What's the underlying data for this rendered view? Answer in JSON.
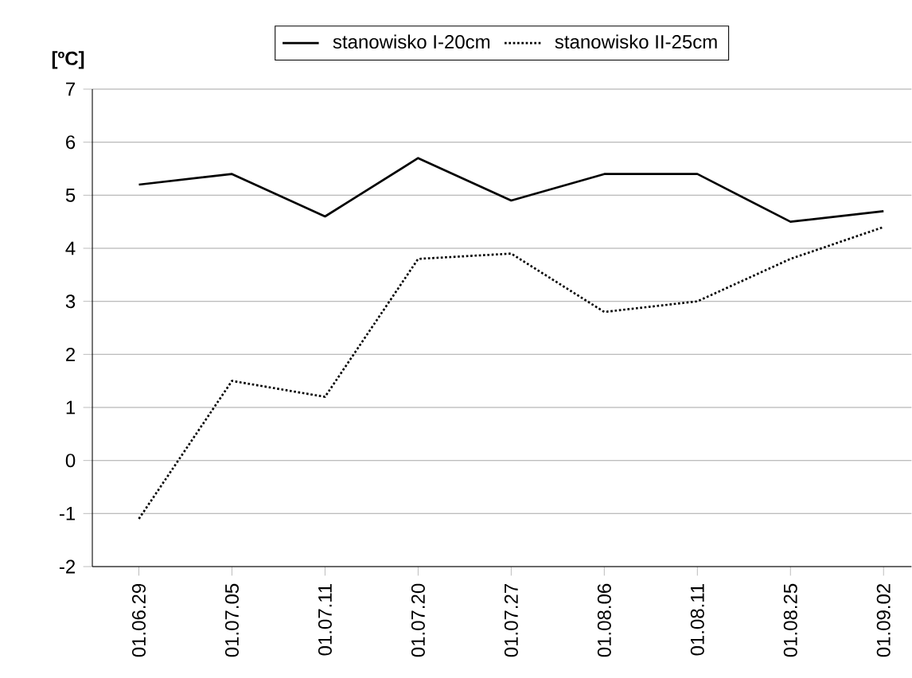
{
  "chart_data": {
    "type": "line",
    "ylabel": "[ºC]",
    "categories": [
      "01.06.29",
      "01.07.05",
      "01.07.11",
      "01.07.20",
      "01.07.27",
      "01.08.06",
      "01.08.11",
      "01.08.25",
      "01.09.02"
    ],
    "series": [
      {
        "name": "stanowisko I-20cm",
        "color": "#000000",
        "line_style": "solid",
        "values": [
          5.2,
          5.4,
          4.6,
          5.7,
          4.9,
          5.4,
          5.4,
          4.5,
          4.7
        ]
      },
      {
        "name": "stanowisko II-25cm",
        "color": "#000000",
        "line_style": "dotted",
        "values": [
          -1.1,
          1.5,
          1.2,
          3.8,
          3.9,
          2.8,
          3.0,
          3.8,
          4.4
        ]
      }
    ],
    "ylim": [
      -2,
      7
    ],
    "yticks": [
      -2,
      -1,
      0,
      1,
      2,
      3,
      4,
      5,
      6,
      7
    ],
    "grid": "y",
    "legend": "top",
    "marker": "none"
  }
}
